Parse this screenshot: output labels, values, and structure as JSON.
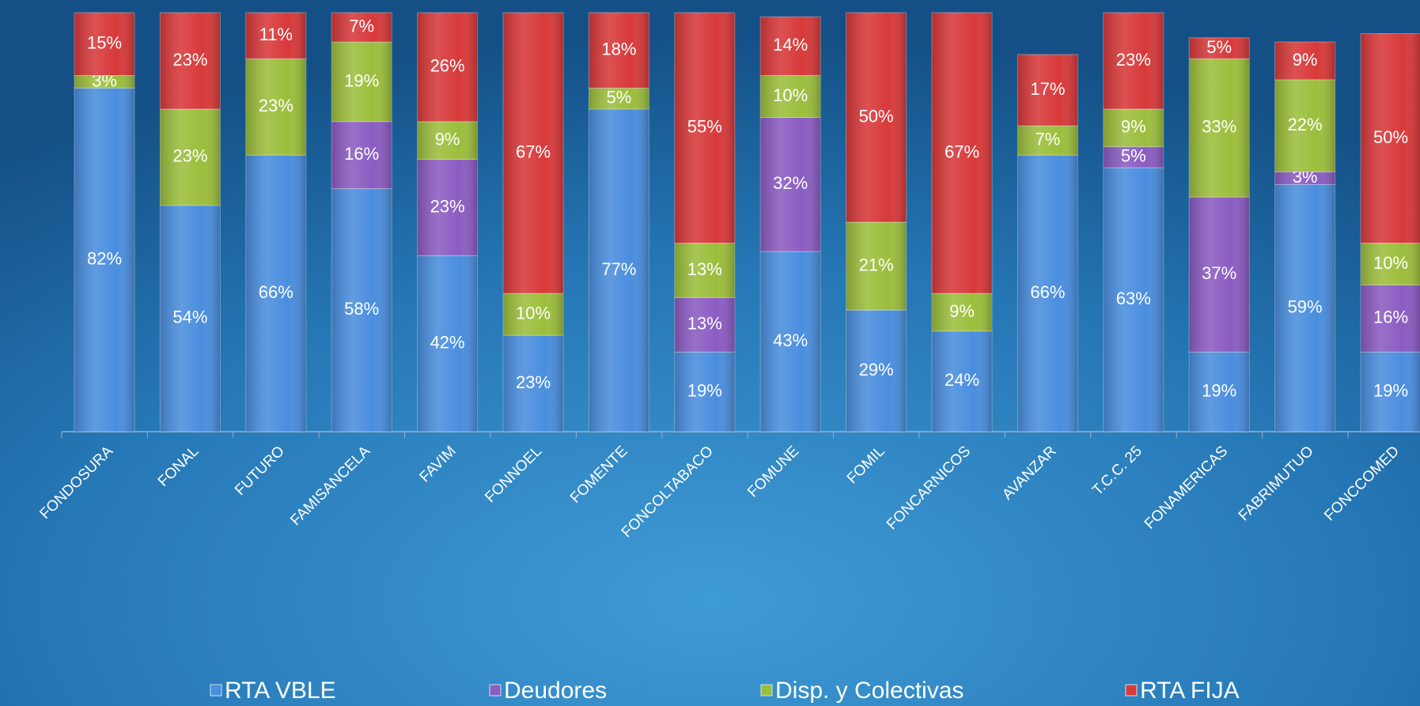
{
  "chart_data": {
    "type": "stacked_bar",
    "categories": [
      "FONDOSURA",
      "FONAL",
      "FUTURO",
      "FAMISANCELA",
      "FAVIM",
      "FONNOEL",
      "FOMENTE",
      "FONCOLTABACO",
      "FOMUNE",
      "FOMIL",
      "FONCARNICOS",
      "AVANZAR",
      "T.C.C. 25",
      "FONAMERICAS",
      "FABRIMUTUO",
      "FONCCOMED"
    ],
    "series": [
      {
        "name": "RTA VBLE",
        "color": "#4a8ede",
        "values": [
          82,
          54,
          66,
          58,
          42,
          23,
          77,
          19,
          43,
          29,
          24,
          66,
          63,
          19,
          59,
          19
        ],
        "value_labels": [
          "82%",
          "54%",
          "66%",
          "58%",
          "42%",
          "23%",
          "77%",
          "19%",
          "43%",
          "29%",
          "24%",
          "66%",
          "63%",
          "19%",
          "59%",
          "19%"
        ]
      },
      {
        "name": "Deudores",
        "color": "#8b5cc2",
        "values": [
          null,
          null,
          null,
          16,
          23,
          null,
          null,
          13,
          32,
          null,
          null,
          null,
          5,
          37,
          3,
          16
        ],
        "value_labels": [
          null,
          null,
          null,
          "16%",
          "23%",
          null,
          null,
          "13%",
          "32%",
          null,
          null,
          null,
          "5%",
          "37%",
          "3%",
          "16%"
        ]
      },
      {
        "name": "Disp. y Colectivas",
        "color": "#9cbe3c",
        "values": [
          3,
          23,
          23,
          19,
          9,
          10,
          5,
          13,
          10,
          21,
          9,
          7,
          9,
          33,
          22,
          10
        ],
        "value_labels": [
          "3%",
          "23%",
          "23%",
          "19%",
          "9%",
          "10%",
          "5%",
          "13%",
          "10%",
          "21%",
          "9%",
          "7%",
          "9%",
          "33%",
          "22%",
          "10%"
        ]
      },
      {
        "name": "RTA FIJA",
        "color": "#d8393a",
        "values": [
          15,
          23,
          11,
          7,
          26,
          67,
          18,
          55,
          14,
          50,
          67,
          17,
          23,
          5,
          9,
          50
        ],
        "value_labels": [
          "15%",
          "23%",
          "11%",
          "7%",
          "26%",
          "67%",
          "18%",
          "55%",
          "14%",
          "50%",
          "67%",
          "17%",
          "23%",
          "5%",
          "9%",
          "50%"
        ]
      }
    ],
    "ylim": [
      0,
      100
    ],
    "legend": "bottom"
  }
}
